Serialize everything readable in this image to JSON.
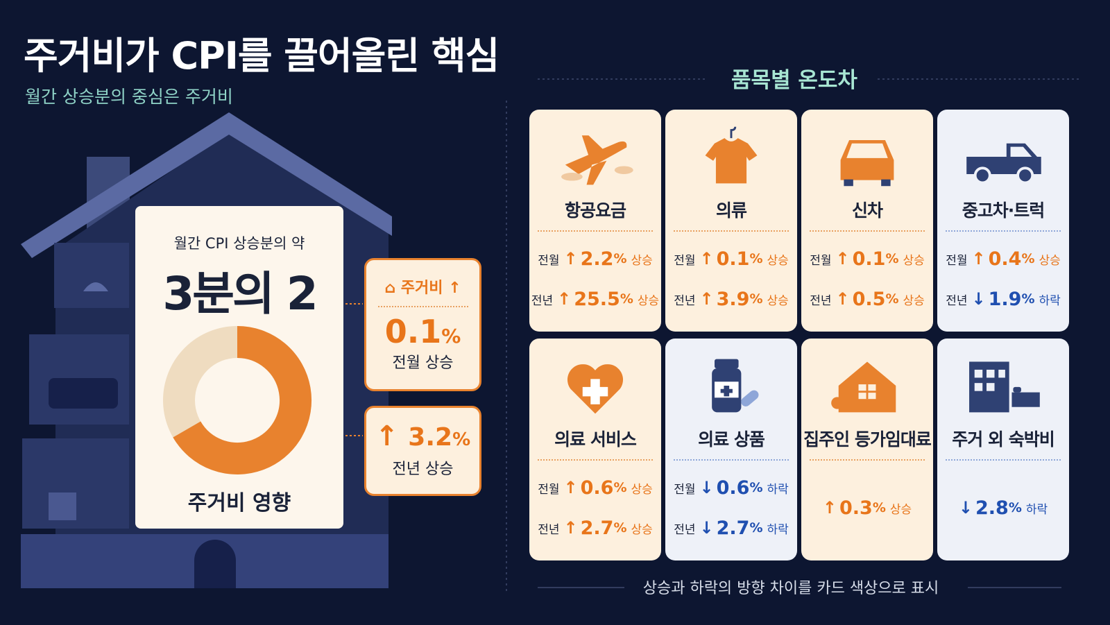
{
  "header": {
    "title": "주거비가 CPI를 끌어올린 핵심",
    "subtitle": "월간 상승분의 중심은 주거비"
  },
  "housing": {
    "lead": "월간 CPI 상승분의 약",
    "share": "3분의 2",
    "label": "주거비 영향",
    "badge": "주거비",
    "monthly": {
      "value": "0.1",
      "unit": "%",
      "label": "전월 상승"
    },
    "yearly": {
      "value": "3.2",
      "unit": "%",
      "label": "전년 상승"
    }
  },
  "items_title": "품목별 온도차",
  "cards": [
    {
      "name": "항공요금",
      "color": "#fdf0de",
      "rows": [
        {
          "period": "전월",
          "trend": "up",
          "value": "2.2",
          "unit": "%",
          "direction": "상승"
        },
        {
          "period": "전년",
          "trend": "up",
          "value": "25.5",
          "unit": "%",
          "direction": "상승"
        }
      ]
    },
    {
      "name": "의류",
      "color": "#fdf0de",
      "rows": [
        {
          "period": "전월",
          "trend": "up",
          "value": "0.1",
          "unit": "%",
          "direction": "상승"
        },
        {
          "period": "전년",
          "trend": "up",
          "value": "3.9",
          "unit": "%",
          "direction": "상승"
        }
      ]
    },
    {
      "name": "신차",
      "color": "#fdf0de",
      "rows": [
        {
          "period": "전월",
          "trend": "up",
          "value": "0.1",
          "unit": "%",
          "direction": "상승"
        },
        {
          "period": "전년",
          "trend": "up",
          "value": "0.5",
          "unit": "%",
          "direction": "상승"
        }
      ]
    },
    {
      "name": "중고차·트럭",
      "color": "#eef1f8",
      "rows": [
        {
          "period": "전월",
          "trend": "up",
          "value": "0.4",
          "unit": "%",
          "direction": "상승"
        },
        {
          "period": "전년",
          "trend": "down",
          "value": "1.9",
          "unit": "%",
          "direction": "하락"
        }
      ]
    },
    {
      "name": "의료 서비스",
      "color": "#fdf0de",
      "rows": [
        {
          "period": "전월",
          "trend": "up",
          "value": "0.6",
          "unit": "%",
          "direction": "상승"
        },
        {
          "period": "전년",
          "trend": "up",
          "value": "2.7",
          "unit": "%",
          "direction": "상승"
        }
      ]
    },
    {
      "name": "의료 상품",
      "color": "#eef1f8",
      "rows": [
        {
          "period": "전월",
          "trend": "down",
          "value": "0.6",
          "unit": "%",
          "direction": "하락"
        },
        {
          "period": "전년",
          "trend": "down",
          "value": "2.7",
          "unit": "%",
          "direction": "하락"
        }
      ]
    },
    {
      "name": "집주인 등가임대료",
      "color": "#fdf0de",
      "rows": [
        {
          "trend": "up",
          "value": "0.3",
          "unit": "%",
          "direction": "상승"
        }
      ]
    },
    {
      "name": "주거 외 숙박비",
      "color": "#eef1f8",
      "rows": [
        {
          "trend": "down",
          "value": "2.8",
          "unit": "%",
          "direction": "하락"
        }
      ]
    }
  ],
  "footer": "상승과 하락의 방향 차이를 카드 색상으로 표시"
}
